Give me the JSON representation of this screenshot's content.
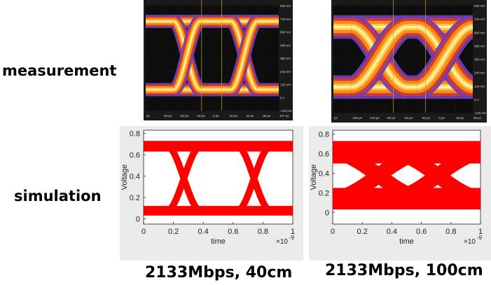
{
  "labels": {
    "measurement": "measurement",
    "simulation": "simulation"
  },
  "captions": [
    "2133Mbps, 40cm",
    "2133Mbps, 100cm"
  ],
  "colors": {
    "scope_bg": "#0d0d0d",
    "sim_fill": "#ff0000",
    "sim_bg": "#ebebeb"
  },
  "scope": {
    "right_axis_left": [
      "840 mV",
      "720 mV",
      "600 mV",
      "480 mV",
      "360 mV",
      "240 mV",
      "120 mV",
      "0 V",
      "-120 mV"
    ],
    "right_axis_right": [
      "840 mV",
      "720 mV",
      "600 mV",
      "480 mV",
      "360 mV",
      "240 mV",
      "120 mV",
      "0 V",
      "-120 mV"
    ],
    "bottom_left": [
      "ps",
      "-80 ps",
      "-53 ps",
      "-26 ps",
      "0 ps",
      "26 ps",
      "53 ps",
      "80 ps",
      "107 ps"
    ],
    "bottom_right": [
      "ps",
      "-150 ps",
      "-120 ps",
      "-90 ps",
      "-60 ps",
      "-30 ps",
      "0 ps",
      "30 ps",
      "60 ps"
    ]
  },
  "chart_data": [
    {
      "type": "line",
      "title": "",
      "xlabel": "time",
      "ylabel": "Voltage",
      "x_exponent": "×10",
      "x_exponent_power": "-9",
      "xlim": [
        0,
        1
      ],
      "ylim": [
        -0.05,
        0.83
      ],
      "x_ticks": [
        "0",
        "0.2",
        "0.4",
        "0.6",
        "0.8",
        "1"
      ],
      "y_ticks": [
        "0",
        "0.2",
        "0.4",
        "0.6",
        "0.8"
      ],
      "rails": {
        "low": [
          0.03,
          0.12
        ],
        "high": [
          0.63,
          0.73
        ]
      },
      "crossings": [
        0.27,
        0.74
      ],
      "transition_width": 0.07
    },
    {
      "type": "line",
      "title": "",
      "xlabel": "time",
      "ylabel": "Voltage",
      "x_exponent": "×10",
      "x_exponent_power": "-9",
      "xlim": [
        0,
        1
      ],
      "ylim": [
        -0.12,
        0.84
      ],
      "x_ticks": [
        "0",
        "0.2",
        "0.4",
        "0.6",
        "0.8",
        "1"
      ],
      "y_ticks": [
        "0",
        "0.2",
        "0.4",
        "0.6",
        "0.8"
      ],
      "rails": {
        "low": [
          0.03,
          0.25
        ],
        "high": [
          0.5,
          0.73
        ]
      },
      "crossings": [
        0.31,
        0.71
      ],
      "transition_width": 0.2
    }
  ]
}
